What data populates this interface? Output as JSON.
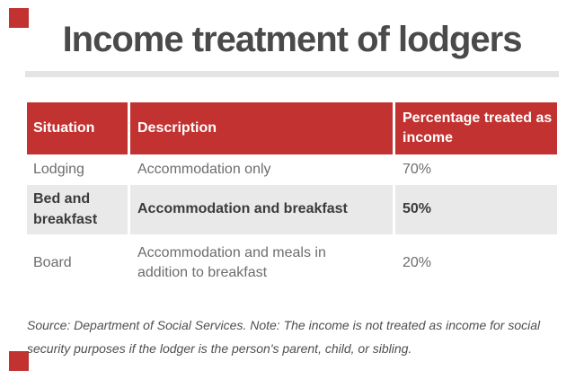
{
  "page_title": "Income treatment of lodgers",
  "colors": {
    "accent_red": "#c23230",
    "header_text": "#ffffff",
    "title_text": "#4a4a4a",
    "row_text": "#6d6d6d",
    "highlight_row_text": "#3b3b3b",
    "highlight_row_bg": "#e9e9e9",
    "title_rule": "#e4e4e4"
  },
  "chart_data": {
    "type": "table",
    "title": "Income treatment of lodgers",
    "columns": [
      "Situation",
      "Description",
      "Percentage treated as income"
    ],
    "rows": [
      [
        "Lodging",
        "Accommodation only",
        "70%"
      ],
      [
        "Bed and breakfast",
        "Accommodation and breakfast",
        "50%"
      ],
      [
        "Board",
        "Accommodation and meals in addition to breakfast",
        "20%"
      ]
    ],
    "highlighted_row_index": 1,
    "values_as_numbers": [
      70,
      50,
      20
    ],
    "source_note": "Source: Department of Social Services. Note: The income is not treated as income for social security purposes if the lodger is the person's parent, child, or sibling."
  }
}
